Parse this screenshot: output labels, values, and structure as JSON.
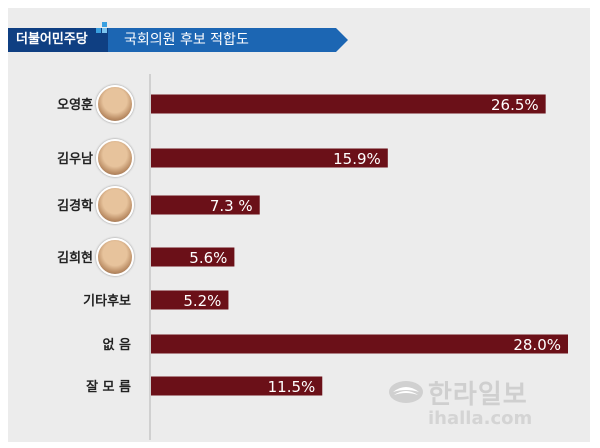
{
  "header": {
    "party": "더불어민주당",
    "title": "국회의원 후보  적합도"
  },
  "watermark": {
    "name": "한라일보",
    "url": "ihalla.com"
  },
  "colors": {
    "bar": "#6b1018",
    "panel": "#ececec",
    "header_dark": "#0f3f82",
    "header_light": "#1c66b3"
  },
  "chart_data": {
    "type": "bar",
    "orientation": "horizontal",
    "categories": [
      "오영훈",
      "김우남",
      "김경학",
      "김희현",
      "기타후보",
      "없   음",
      "잘 모 름"
    ],
    "values": [
      26.5,
      15.9,
      7.3,
      5.6,
      5.2,
      28.0,
      11.5
    ],
    "value_labels": [
      "26.5%",
      "15.9%",
      "7.3 %",
      "5.6%",
      "5.2%",
      "28.0%",
      "11.5%"
    ],
    "title": "",
    "xlabel": "",
    "ylabel": "",
    "grid": false,
    "legend": "none"
  }
}
